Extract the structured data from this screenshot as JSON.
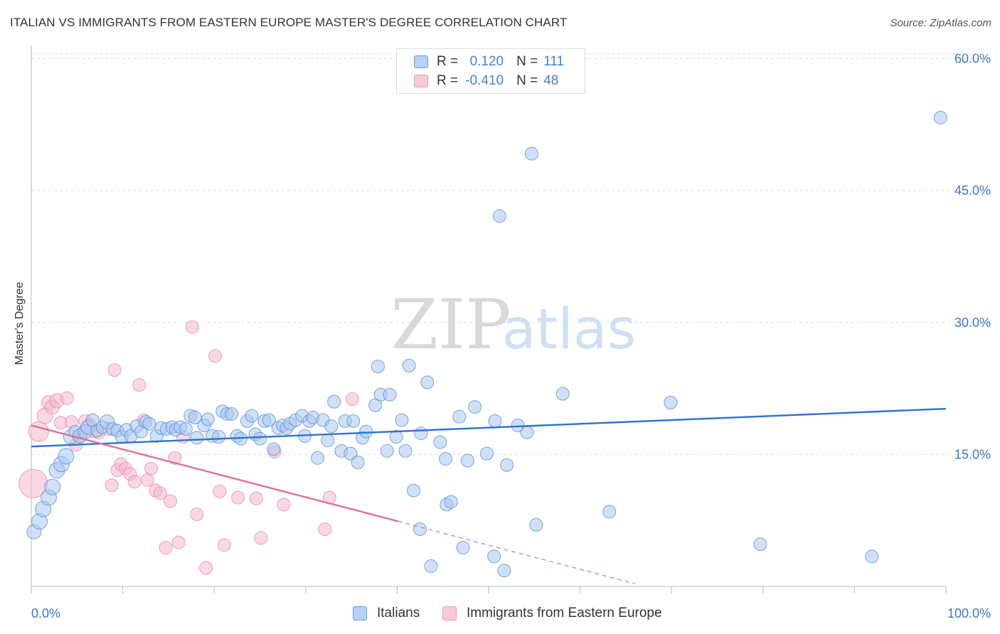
{
  "title": "ITALIAN VS IMMIGRANTS FROM EASTERN EUROPE MASTER'S DEGREE CORRELATION CHART",
  "source": "Source: ZipAtlas.com",
  "watermark": {
    "zip": "ZIP",
    "atlas": "atlas"
  },
  "legend": {
    "italians": {
      "r_label": "R =",
      "r_value": "0.120",
      "n_label": "N =",
      "n_value": "111"
    },
    "immigrants": {
      "r_label": "R =",
      "r_value": "-0.410",
      "n_label": "N =",
      "n_value": "48"
    }
  },
  "colors": {
    "italians_fill": "#a9c8f0",
    "italians_stroke": "#5b8fd6",
    "italians_line": "#2f72d0",
    "immigrants_fill": "#f6b8cc",
    "immigrants_stroke": "#e88aab",
    "immigrants_line": "#e0709a",
    "tick_text": "#3f76cc",
    "grid": "#dddddd"
  },
  "chart_data": {
    "type": "scatter",
    "title": "ITALIAN VS IMMIGRANTS FROM EASTERN EUROPE MASTER'S DEGREE CORRELATION CHART",
    "xlabel": "",
    "ylabel": "Master's Degree",
    "xlim": [
      0,
      100
    ],
    "ylim": [
      0,
      61.5
    ],
    "x_tick_labels": [
      "0.0%",
      "100.0%"
    ],
    "y_ticks": [
      15,
      30,
      45,
      60
    ],
    "y_tick_labels": [
      "15.0%",
      "30.0%",
      "45.0%",
      "60.0%"
    ],
    "grid": "horizontal dashed",
    "legend_position": "top-center",
    "series": [
      {
        "name": "Italians",
        "r": 0.12,
        "n": 111,
        "trend": {
          "x": [
            0,
            100
          ],
          "y": [
            15.9,
            20.2
          ],
          "dashed_from": null
        },
        "points": [
          [
            0.3,
            6.2,
            10
          ],
          [
            0.9,
            7.4,
            11
          ],
          [
            1.3,
            8.8,
            11
          ],
          [
            1.9,
            10.1,
            11
          ],
          [
            2.3,
            11.3,
            11
          ],
          [
            2.8,
            13.2,
            11
          ],
          [
            3.3,
            13.9,
            11
          ],
          [
            3.8,
            14.8,
            11
          ],
          [
            4.3,
            17.0,
            10
          ],
          [
            4.8,
            17.6,
            9
          ],
          [
            5.3,
            17.1,
            10
          ],
          [
            5.9,
            17.6,
            10
          ],
          [
            6.2,
            18.1,
            10
          ],
          [
            6.7,
            18.9,
            9
          ],
          [
            7.2,
            17.7,
            9
          ],
          [
            7.8,
            18.1,
            9
          ],
          [
            8.3,
            18.7,
            10
          ],
          [
            8.9,
            17.9,
            9
          ],
          [
            9.4,
            17.7,
            9
          ],
          [
            9.9,
            17.0,
            9
          ],
          [
            10.4,
            17.8,
            9
          ],
          [
            10.9,
            17.1,
            9
          ],
          [
            11.5,
            18.2,
            9
          ],
          [
            12.0,
            17.6,
            9
          ],
          [
            12.5,
            18.7,
            9
          ],
          [
            12.9,
            18.5,
            9
          ],
          [
            13.7,
            17.1,
            9
          ],
          [
            14.2,
            18.0,
            9
          ],
          [
            14.8,
            17.9,
            9
          ],
          [
            15.4,
            18.1,
            9
          ],
          [
            15.8,
            17.8,
            9
          ],
          [
            16.3,
            18.1,
            9
          ],
          [
            16.9,
            17.9,
            9
          ],
          [
            17.4,
            19.4,
            9
          ],
          [
            17.9,
            19.2,
            9
          ],
          [
            18.1,
            16.9,
            9
          ],
          [
            18.9,
            18.3,
            9
          ],
          [
            19.3,
            19.0,
            9
          ],
          [
            19.8,
            17.1,
            9
          ],
          [
            20.5,
            17.0,
            9
          ],
          [
            20.9,
            19.9,
            9
          ],
          [
            21.4,
            19.6,
            9
          ],
          [
            21.9,
            19.6,
            9
          ],
          [
            22.5,
            17.1,
            9
          ],
          [
            22.9,
            16.8,
            9
          ],
          [
            23.6,
            18.8,
            9
          ],
          [
            24.1,
            19.4,
            9
          ],
          [
            24.5,
            17.3,
            9
          ],
          [
            25.0,
            16.8,
            9
          ],
          [
            25.5,
            18.8,
            9
          ],
          [
            26.0,
            18.9,
            9
          ],
          [
            26.5,
            15.6,
            9
          ],
          [
            27.0,
            18.0,
            9
          ],
          [
            27.5,
            18.3,
            9
          ],
          [
            27.9,
            18.0,
            9
          ],
          [
            28.3,
            18.5,
            9
          ],
          [
            28.9,
            18.9,
            9
          ],
          [
            29.6,
            19.4,
            9
          ],
          [
            29.9,
            17.1,
            9
          ],
          [
            30.4,
            18.8,
            9
          ],
          [
            30.8,
            19.2,
            9
          ],
          [
            31.3,
            14.6,
            9
          ],
          [
            31.9,
            18.9,
            9
          ],
          [
            32.4,
            16.6,
            9
          ],
          [
            32.8,
            18.2,
            9
          ],
          [
            33.1,
            21.0,
            9
          ],
          [
            33.9,
            15.4,
            9
          ],
          [
            34.3,
            18.8,
            9
          ],
          [
            34.9,
            15.1,
            9
          ],
          [
            35.2,
            18.8,
            9
          ],
          [
            35.7,
            14.1,
            9
          ],
          [
            36.2,
            16.9,
            9
          ],
          [
            36.6,
            17.6,
            9
          ],
          [
            37.6,
            20.6,
            9
          ],
          [
            37.9,
            25.0,
            9
          ],
          [
            38.2,
            21.8,
            9
          ],
          [
            38.9,
            15.4,
            9
          ],
          [
            39.2,
            21.8,
            9
          ],
          [
            39.9,
            17.0,
            9
          ],
          [
            40.5,
            18.9,
            9
          ],
          [
            40.9,
            15.4,
            9
          ],
          [
            41.3,
            25.1,
            9
          ],
          [
            42.6,
            17.4,
            9
          ],
          [
            43.3,
            23.2,
            9
          ],
          [
            41.8,
            10.9,
            9
          ],
          [
            42.5,
            6.5,
            9
          ],
          [
            43.7,
            2.3,
            9
          ],
          [
            44.7,
            16.4,
            9
          ],
          [
            45.3,
            14.5,
            9
          ],
          [
            45.4,
            9.3,
            9
          ],
          [
            45.9,
            9.6,
            9
          ],
          [
            46.8,
            19.3,
            9
          ],
          [
            47.2,
            4.4,
            9
          ],
          [
            47.7,
            14.3,
            9
          ],
          [
            48.5,
            20.4,
            9
          ],
          [
            49.8,
            15.1,
            9
          ],
          [
            50.7,
            18.8,
            9
          ],
          [
            50.6,
            3.4,
            9
          ],
          [
            51.2,
            42.1,
            9
          ],
          [
            51.7,
            1.8,
            9
          ],
          [
            52.0,
            13.8,
            9
          ],
          [
            53.2,
            18.3,
            9
          ],
          [
            54.2,
            17.5,
            9
          ],
          [
            54.7,
            49.2,
            9
          ],
          [
            55.2,
            7.0,
            9
          ],
          [
            58.1,
            21.9,
            9
          ],
          [
            63.2,
            8.5,
            9
          ],
          [
            69.9,
            20.9,
            9
          ],
          [
            79.7,
            4.8,
            9
          ],
          [
            91.9,
            3.4,
            9
          ],
          [
            99.4,
            53.3,
            9
          ]
        ]
      },
      {
        "name": "Immigrants from Eastern Europe",
        "r": -0.41,
        "n": 48,
        "trend": {
          "x": [
            0,
            40.1,
            66
          ],
          "y": [
            18.3,
            7.4,
            0.3
          ],
          "dashed_from": 40.1
        },
        "points": [
          [
            0.2,
            11.7,
            20
          ],
          [
            0.8,
            17.6,
            14
          ],
          [
            1.5,
            19.4,
            11
          ],
          [
            1.9,
            20.9,
            10
          ],
          [
            2.3,
            20.4,
            10
          ],
          [
            2.8,
            21.1,
            10
          ],
          [
            3.2,
            18.6,
            9
          ],
          [
            3.9,
            21.4,
            9
          ],
          [
            4.4,
            18.7,
            9
          ],
          [
            4.9,
            16.1,
            9
          ],
          [
            5.4,
            17.1,
            9
          ],
          [
            5.9,
            18.8,
            9
          ],
          [
            6.4,
            18.4,
            9
          ],
          [
            6.9,
            17.6,
            9
          ],
          [
            7.4,
            17.5,
            9
          ],
          [
            8.4,
            17.9,
            9
          ],
          [
            8.8,
            11.5,
            9
          ],
          [
            9.1,
            24.6,
            9
          ],
          [
            9.4,
            13.2,
            9
          ],
          [
            9.8,
            13.9,
            9
          ],
          [
            10.3,
            13.4,
            9
          ],
          [
            10.8,
            12.8,
            9
          ],
          [
            11.3,
            11.9,
            9
          ],
          [
            11.8,
            22.9,
            9
          ],
          [
            12.3,
            18.9,
            9
          ],
          [
            12.7,
            12.1,
            9
          ],
          [
            13.1,
            13.4,
            9
          ],
          [
            13.6,
            10.9,
            9
          ],
          [
            14.1,
            10.6,
            9
          ],
          [
            14.7,
            4.4,
            9
          ],
          [
            15.2,
            9.7,
            9
          ],
          [
            15.7,
            14.6,
            9
          ],
          [
            16.1,
            5.0,
            9
          ],
          [
            16.6,
            17.0,
            9
          ],
          [
            17.6,
            29.5,
            9
          ],
          [
            18.1,
            8.2,
            9
          ],
          [
            19.1,
            2.1,
            9
          ],
          [
            20.1,
            26.2,
            9
          ],
          [
            20.6,
            10.8,
            9
          ],
          [
            21.1,
            4.7,
            9
          ],
          [
            22.6,
            10.1,
            9
          ],
          [
            24.6,
            10.0,
            9
          ],
          [
            25.1,
            5.5,
            9
          ],
          [
            26.6,
            15.3,
            9
          ],
          [
            27.6,
            9.3,
            9
          ],
          [
            32.1,
            6.5,
            9
          ],
          [
            32.6,
            10.1,
            9
          ],
          [
            35.1,
            21.3,
            9
          ]
        ]
      }
    ]
  },
  "bottom_legend": {
    "italians": "Italians",
    "immigrants": "Immigrants from Eastern Europe"
  }
}
